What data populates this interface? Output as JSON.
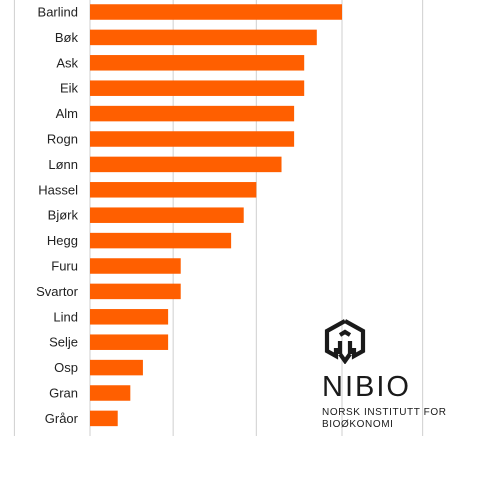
{
  "chart_data": {
    "type": "bar",
    "orientation": "horizontal",
    "categories": [
      "Barlind",
      "Bøk",
      "Ask",
      "Eik",
      "Alm",
      "Rogn",
      "Lønn",
      "Hassel",
      "Bjørk",
      "Hegg",
      "Furu",
      "Svartor",
      "Lind",
      "Selje",
      "Osp",
      "Gran",
      "Gråor"
    ],
    "values": [
      100,
      90,
      85,
      85,
      81,
      81,
      76,
      66,
      61,
      56,
      36,
      36,
      31,
      31,
      21,
      16,
      11
    ],
    "xlim": [
      -60,
      140
    ],
    "grid": "vertical",
    "legend": "none",
    "title": "",
    "xlabel": "",
    "ylabel": ""
  },
  "colors": {
    "bar": "#ff5f00",
    "grid": "#cfcfcf",
    "text": "#222222"
  },
  "logo": {
    "name": "NIBIO",
    "tagline_line1": "NORSK INSTITUTT FOR",
    "tagline_line2": "BIOØKONOMI",
    "icon": "nibio-cube-logo"
  }
}
